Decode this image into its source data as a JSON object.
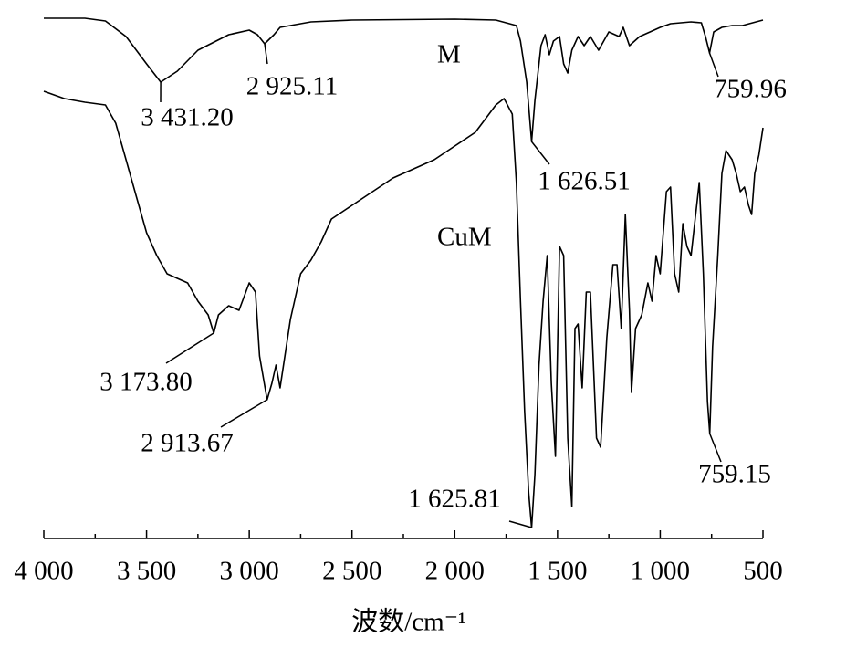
{
  "chart_data": {
    "type": "line",
    "x_label": "波数/cm⁻¹",
    "xlim": [
      4000,
      500
    ],
    "xticks": [
      {
        "value": 4000,
        "label": "4 000"
      },
      {
        "value": 3500,
        "label": "3 500"
      },
      {
        "value": 3000,
        "label": "3 000"
      },
      {
        "value": 2500,
        "label": "2 500"
      },
      {
        "value": 2000,
        "label": "2 000"
      },
      {
        "value": 1500,
        "label": "1 500"
      },
      {
        "value": 1000,
        "label": "1 000"
      },
      500
    ],
    "xminorticks": [
      3750,
      3250,
      2750,
      2250,
      1750,
      1250,
      750
    ],
    "ylim": [
      0,
      590
    ],
    "series": [
      {
        "name": "M",
        "color": "#000000",
        "x": [
          4000,
          3800,
          3700,
          3600,
          3500,
          3431,
          3350,
          3250,
          3100,
          3000,
          2960,
          2925,
          2880,
          2850,
          2700,
          2500,
          2000,
          1800,
          1700,
          1680,
          1650,
          1626,
          1610,
          1580,
          1560,
          1540,
          1520,
          1490,
          1470,
          1450,
          1430,
          1400,
          1370,
          1340,
          1300,
          1250,
          1200,
          1180,
          1150,
          1100,
          1050,
          1000,
          950,
          900,
          850,
          800,
          780,
          760,
          740,
          700,
          650,
          600,
          550,
          500
        ],
        "values": [
          570,
          570,
          567,
          550,
          520,
          500,
          512,
          535,
          552,
          557,
          552,
          542,
          552,
          560,
          566,
          568,
          569,
          568,
          562,
          545,
          500,
          435,
          480,
          540,
          552,
          530,
          545,
          550,
          520,
          510,
          535,
          550,
          540,
          550,
          535,
          555,
          550,
          560,
          540,
          550,
          555,
          560,
          564,
          565,
          566,
          565,
          550,
          532,
          555,
          560,
          562,
          562,
          565,
          568
        ]
      },
      {
        "name": "CuM",
        "color": "#000000",
        "x": [
          4000,
          3900,
          3800,
          3700,
          3650,
          3600,
          3550,
          3500,
          3450,
          3400,
          3350,
          3300,
          3250,
          3200,
          3173,
          3150,
          3100,
          3050,
          3000,
          2970,
          2950,
          2913,
          2890,
          2870,
          2850,
          2800,
          2750,
          2700,
          2650,
          2600,
          2500,
          2400,
          2300,
          2200,
          2100,
          2000,
          1900,
          1850,
          1800,
          1760,
          1720,
          1700,
          1680,
          1660,
          1640,
          1626,
          1610,
          1590,
          1570,
          1550,
          1530,
          1510,
          1490,
          1470,
          1450,
          1430,
          1415,
          1400,
          1380,
          1360,
          1340,
          1310,
          1290,
          1260,
          1230,
          1210,
          1190,
          1170,
          1150,
          1140,
          1120,
          1090,
          1060,
          1040,
          1020,
          1000,
          970,
          950,
          930,
          910,
          890,
          870,
          850,
          830,
          810,
          790,
          770,
          759,
          745,
          720,
          700,
          680,
          650,
          630,
          610,
          590,
          570,
          555,
          540,
          520,
          500
        ],
        "values": [
          490,
          482,
          478,
          475,
          455,
          415,
          375,
          335,
          310,
          290,
          285,
          280,
          260,
          245,
          225,
          245,
          255,
          250,
          280,
          270,
          200,
          152,
          170,
          190,
          165,
          240,
          290,
          305,
          325,
          350,
          365,
          380,
          395,
          405,
          415,
          430,
          445,
          460,
          475,
          482,
          465,
          390,
          260,
          140,
          50,
          12,
          70,
          190,
          260,
          310,
          170,
          90,
          320,
          310,
          110,
          35,
          230,
          235,
          165,
          270,
          270,
          110,
          100,
          220,
          300,
          300,
          230,
          355,
          250,
          160,
          230,
          245,
          280,
          260,
          310,
          290,
          380,
          385,
          290,
          270,
          345,
          320,
          310,
          350,
          390,
          290,
          150,
          115,
          210,
          310,
          400,
          425,
          415,
          400,
          380,
          385,
          365,
          355,
          400,
          420,
          450
        ]
      }
    ],
    "annotations": [
      {
        "text": "3 431.20",
        "x": 3431.2,
        "y": 500
      },
      {
        "text": "2 925.11",
        "x": 2925.11,
        "y": 542
      },
      {
        "text": "1 626.51",
        "x": 1626.51,
        "y": 435
      },
      {
        "text": "759.96",
        "x": 759.96,
        "y": 532
      },
      {
        "text": "3 173.80",
        "x": 3173.8,
        "y": 225
      },
      {
        "text": "2 913.67",
        "x": 2913.67,
        "y": 152
      },
      {
        "text": "1 625.81",
        "x": 1625.81,
        "y": 12
      },
      {
        "text": "759.15",
        "x": 759.15,
        "y": 115
      }
    ]
  }
}
